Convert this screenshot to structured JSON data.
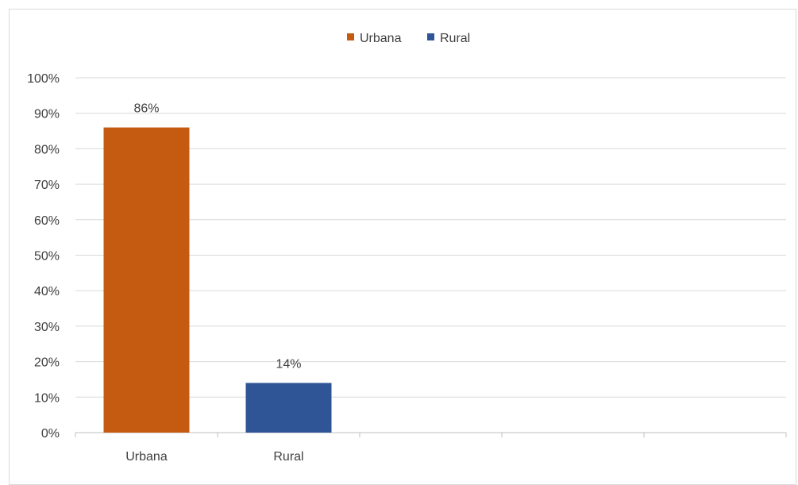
{
  "chart_data": {
    "type": "bar",
    "categories": [
      "Urbana",
      "Rural",
      "",
      "",
      ""
    ],
    "series": [
      {
        "name": "Urbana",
        "color": "#C55A11",
        "values": [
          86,
          null,
          null,
          null,
          null
        ]
      },
      {
        "name": "Rural",
        "color": "#2F5597",
        "values": [
          null,
          14,
          null,
          null,
          null
        ]
      }
    ],
    "data_labels": [
      "86%",
      "14%"
    ],
    "ylim": [
      0,
      100
    ],
    "y_ticks": [
      "0%",
      "10%",
      "20%",
      "30%",
      "40%",
      "50%",
      "60%",
      "70%",
      "80%",
      "90%",
      "100%"
    ],
    "grid": true,
    "legend_position": "top-center",
    "title": "",
    "xlabel": "",
    "ylabel": ""
  }
}
